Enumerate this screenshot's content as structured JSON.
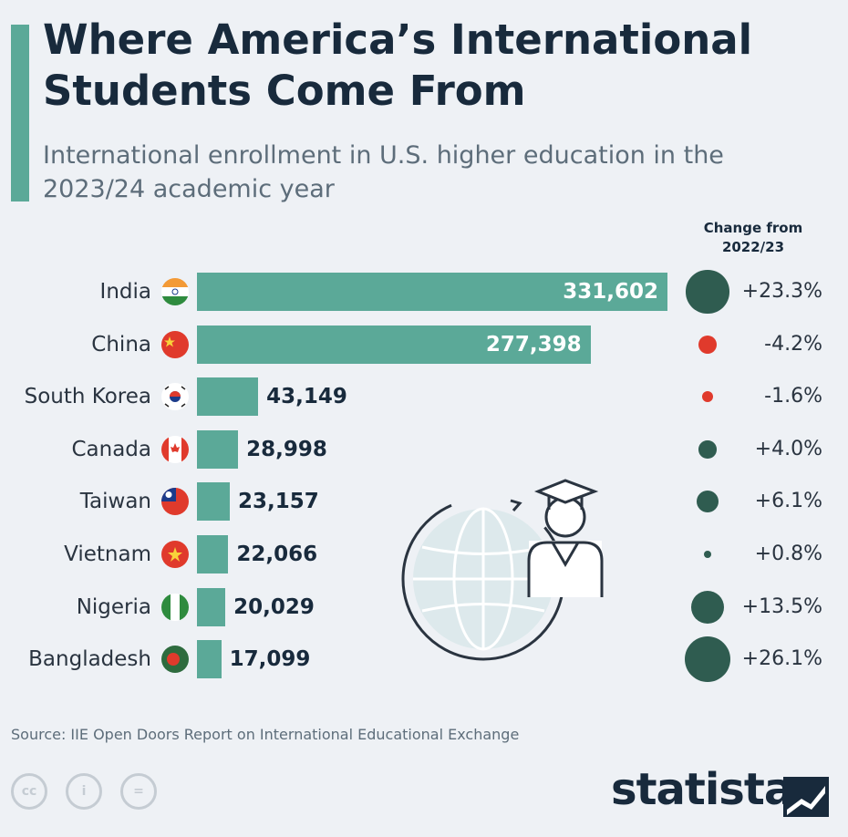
{
  "header": {
    "title": "Where America’s International Students Come From",
    "subtitle": "International enrollment in U.S. higher education in the 2023/24 academic year",
    "change_header": "Change from 2022/23"
  },
  "colors": {
    "bar": "#5ba998",
    "positive_change": "#2f5c50",
    "negative_change": "#e03a2c",
    "title": "#182a3c"
  },
  "chart_data": {
    "type": "bar",
    "orientation": "horizontal",
    "title": "Where America’s International Students Come From",
    "subtitle": "International enrollment in U.S. higher education in the 2023/24 academic year",
    "categories": [
      "India",
      "China",
      "South Korea",
      "Canada",
      "Taiwan",
      "Vietnam",
      "Nigeria",
      "Bangladesh"
    ],
    "values": [
      331602,
      277398,
      43149,
      28998,
      23157,
      22066,
      20029,
      17099
    ],
    "value_labels": [
      "331,602",
      "277,398",
      "43,149",
      "28,998",
      "23,157",
      "22,066",
      "20,029",
      "17,099"
    ],
    "change_header": "Change from 2022/23",
    "change_values": [
      23.3,
      -4.2,
      -1.6,
      4.0,
      6.1,
      0.8,
      13.5,
      26.1
    ],
    "change_labels": [
      "+23.3%",
      "-4.2%",
      "-1.6%",
      "+4.0%",
      "+6.1%",
      "+0.8%",
      "+13.5%",
      "+26.1%"
    ],
    "flag_icons": [
      "india-flag-icon",
      "china-flag-icon",
      "south-korea-flag-icon",
      "canada-flag-icon",
      "taiwan-flag-icon",
      "vietnam-flag-icon",
      "nigeria-flag-icon",
      "bangladesh-flag-icon"
    ],
    "grid": false,
    "legend": "none"
  },
  "illustration": {
    "icon": "globe-graduate-icon"
  },
  "footer": {
    "source": "Source: IIE Open Doors Report on International Educational Exchange",
    "license_icons": [
      "cc",
      "i",
      "="
    ],
    "brand": "statista"
  }
}
